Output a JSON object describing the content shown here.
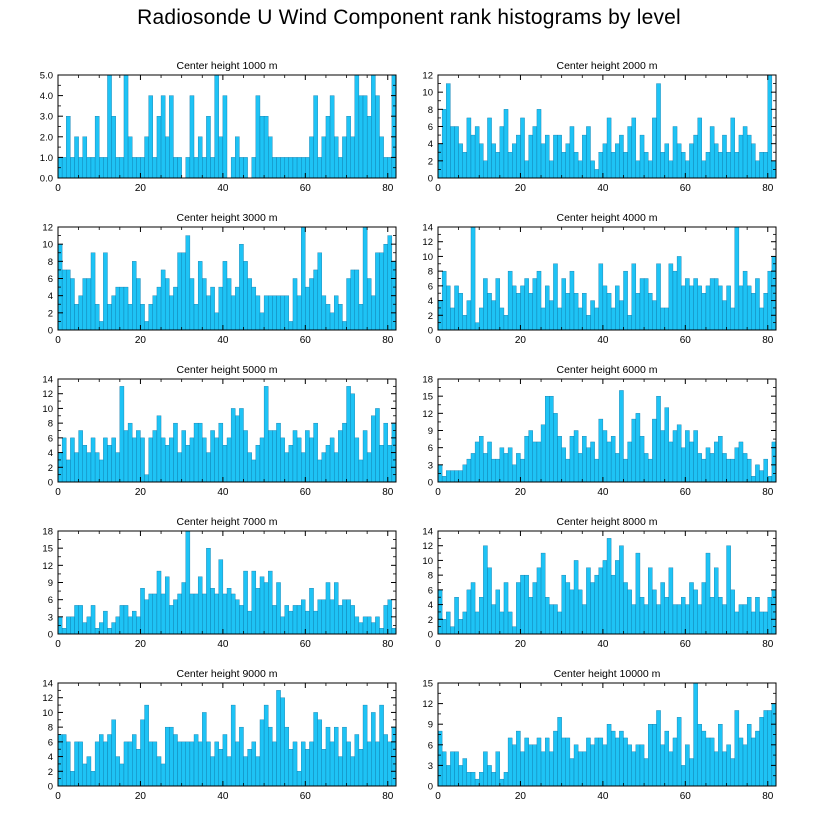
{
  "title": "Radiosonde U Wind Component rank histograms by level",
  "colors": {
    "bar_fill": "#1ec3f5",
    "bar_edge": "#0a6fa0",
    "axis": "#000000"
  },
  "chart_data": [
    {
      "type": "bar",
      "title": "Center height 1000 m",
      "xlim": [
        0,
        82
      ],
      "ylim": [
        0,
        5
      ],
      "xticks": [
        0,
        20,
        40,
        60,
        80
      ],
      "xtick_labels": [
        "0",
        "20",
        "40",
        "60",
        "80"
      ],
      "yticks": [
        0,
        1,
        2,
        3,
        4,
        5
      ],
      "ytick_labels": [
        "0.0",
        "1.0",
        "2.0",
        "3.0",
        "4.0",
        "5.0"
      ],
      "values": [
        1,
        1,
        3,
        1,
        2,
        1,
        2,
        1,
        1,
        3,
        1,
        1,
        5,
        3,
        1,
        1,
        5,
        2,
        1,
        1,
        1,
        2,
        4,
        1,
        3,
        4,
        2,
        4,
        1,
        1,
        0,
        1,
        4,
        1,
        2,
        1,
        3,
        1,
        5,
        2,
        4,
        0,
        1,
        2,
        1,
        1,
        0,
        1,
        4,
        3,
        3,
        2,
        1,
        1,
        1,
        1,
        1,
        1,
        1,
        1,
        1,
        2,
        4,
        1,
        2,
        3,
        4,
        2,
        1,
        2,
        3,
        2,
        5,
        4,
        4,
        3,
        5,
        4,
        2,
        1,
        1,
        5
      ]
    },
    {
      "type": "bar",
      "title": "Center height 2000 m",
      "xlim": [
        0,
        82
      ],
      "ylim": [
        0,
        12
      ],
      "xticks": [
        0,
        20,
        40,
        60,
        80
      ],
      "xtick_labels": [
        "0",
        "20",
        "40",
        "60",
        "80"
      ],
      "yticks": [
        0,
        2,
        4,
        6,
        8,
        10,
        12
      ],
      "ytick_labels": [
        "0",
        "2",
        "4",
        "6",
        "8",
        "10",
        "12"
      ],
      "values": [
        4,
        8,
        11,
        6,
        6,
        4,
        3,
        7,
        5,
        6,
        4,
        2,
        7,
        4,
        3,
        6,
        8,
        3,
        4,
        5,
        7,
        2,
        5,
        6,
        8,
        4,
        5,
        2,
        5,
        5,
        3,
        4,
        6,
        3,
        2,
        5,
        6,
        2,
        1,
        3,
        4,
        7,
        3,
        4,
        5,
        3,
        6,
        7,
        2,
        5,
        3,
        2,
        7,
        11,
        3,
        4,
        2,
        6,
        4,
        3,
        2,
        4,
        5,
        7,
        2,
        3,
        6,
        4,
        3,
        5,
        3,
        7,
        3,
        5,
        6,
        5,
        4,
        2,
        3,
        3,
        12,
        2
      ]
    },
    {
      "type": "bar",
      "title": "Center height 3000 m",
      "xlim": [
        0,
        82
      ],
      "ylim": [
        0,
        12
      ],
      "xticks": [
        0,
        20,
        40,
        60,
        80
      ],
      "xtick_labels": [
        "0",
        "20",
        "40",
        "60",
        "80"
      ],
      "yticks": [
        0,
        2,
        4,
        6,
        8,
        10,
        12
      ],
      "ytick_labels": [
        "0",
        "2",
        "4",
        "6",
        "8",
        "10",
        "12"
      ],
      "values": [
        10,
        7,
        7,
        6,
        3,
        4,
        6,
        6,
        9,
        3,
        1,
        9,
        3,
        4,
        5,
        5,
        5,
        3,
        8,
        6,
        3,
        1,
        3,
        4,
        5,
        7,
        6,
        4,
        5,
        9,
        9,
        11,
        6,
        3,
        8,
        6,
        4,
        5,
        2,
        5,
        8,
        6,
        4,
        5,
        10,
        8,
        6,
        5,
        4,
        2,
        4,
        4,
        4,
        4,
        4,
        4,
        1,
        6,
        4,
        12,
        5,
        6,
        7,
        9,
        4,
        3,
        2,
        4,
        3,
        1,
        6,
        7,
        7,
        3,
        12,
        6,
        4,
        9,
        9,
        10,
        11,
        8
      ]
    },
    {
      "type": "bar",
      "title": "Center height 4000 m",
      "xlim": [
        0,
        82
      ],
      "ylim": [
        0,
        14
      ],
      "xticks": [
        0,
        20,
        40,
        60,
        80
      ],
      "xtick_labels": [
        "0",
        "20",
        "40",
        "60",
        "80"
      ],
      "yticks": [
        0,
        2,
        4,
        6,
        8,
        10,
        12,
        14
      ],
      "ytick_labels": [
        "0",
        "2",
        "4",
        "6",
        "8",
        "10",
        "12",
        "14"
      ],
      "values": [
        4,
        8,
        6,
        3,
        6,
        5,
        2,
        4,
        14,
        1,
        3,
        7,
        5,
        4,
        7,
        3,
        2,
        8,
        6,
        5,
        6,
        7,
        5,
        7,
        8,
        3,
        6,
        4,
        9,
        3,
        7,
        5,
        8,
        5,
        3,
        5,
        2,
        4,
        3,
        9,
        6,
        5,
        3,
        6,
        4,
        8,
        2,
        9,
        5,
        7,
        7,
        5,
        4,
        9,
        3,
        3,
        9,
        8,
        10,
        6,
        7,
        6,
        7,
        6,
        5,
        6,
        7,
        7,
        6,
        4,
        6,
        3,
        14,
        6,
        8,
        6,
        5,
        7,
        3,
        5,
        8,
        10
      ]
    },
    {
      "type": "bar",
      "title": "Center height 5000 m",
      "xlim": [
        0,
        82
      ],
      "ylim": [
        0,
        14
      ],
      "xticks": [
        0,
        20,
        40,
        60,
        80
      ],
      "xtick_labels": [
        "0",
        "20",
        "40",
        "60",
        "80"
      ],
      "yticks": [
        0,
        2,
        4,
        6,
        8,
        10,
        12,
        14
      ],
      "ytick_labels": [
        "0",
        "2",
        "4",
        "6",
        "8",
        "10",
        "12",
        "14"
      ],
      "values": [
        4,
        6,
        3,
        6,
        4,
        7,
        5,
        4,
        6,
        4,
        3,
        6,
        5,
        6,
        4,
        13,
        7,
        8,
        6,
        7,
        6,
        1,
        6,
        7,
        9,
        6,
        5,
        6,
        8,
        4,
        7,
        5,
        6,
        8,
        8,
        6,
        4,
        7,
        6,
        8,
        5,
        6,
        10,
        9,
        10,
        7,
        4,
        3,
        5,
        6,
        13,
        7,
        7,
        8,
        6,
        4,
        5,
        7,
        6,
        4,
        7,
        6,
        8,
        3,
        4,
        5,
        6,
        4,
        7,
        8,
        13,
        12,
        6,
        3,
        7,
        4,
        9,
        10,
        5,
        8,
        5,
        8
      ]
    },
    {
      "type": "bar",
      "title": "Center height 6000 m",
      "xlim": [
        0,
        82
      ],
      "ylim": [
        0,
        18
      ],
      "xticks": [
        0,
        20,
        40,
        60,
        80
      ],
      "xtick_labels": [
        "0",
        "20",
        "40",
        "60",
        "80"
      ],
      "yticks": [
        0,
        3,
        6,
        9,
        12,
        15,
        18
      ],
      "ytick_labels": [
        "0",
        "3",
        "6",
        "9",
        "12",
        "15",
        "18"
      ],
      "values": [
        3,
        1,
        2,
        2,
        2,
        2,
        3,
        4,
        5,
        7,
        8,
        5,
        7,
        4,
        4,
        6,
        5,
        6,
        3,
        5,
        4,
        8,
        9,
        7,
        7,
        10,
        15,
        15,
        12,
        8,
        6,
        4,
        8,
        9,
        5,
        8,
        6,
        7,
        4,
        11,
        9,
        7,
        8,
        5,
        16,
        4,
        7,
        11,
        12,
        8,
        5,
        4,
        11,
        15,
        9,
        13,
        7,
        9,
        10,
        6,
        9,
        7,
        9,
        5,
        4,
        6,
        5,
        7,
        8,
        5,
        4,
        4,
        6,
        7,
        5,
        4,
        1,
        3,
        2,
        4,
        1,
        7
      ]
    },
    {
      "type": "bar",
      "title": "Center height 7000 m",
      "xlim": [
        0,
        82
      ],
      "ylim": [
        0,
        18
      ],
      "xticks": [
        0,
        20,
        40,
        60,
        80
      ],
      "xtick_labels": [
        "0",
        "20",
        "40",
        "60",
        "80"
      ],
      "yticks": [
        0,
        3,
        6,
        9,
        12,
        15,
        18
      ],
      "ytick_labels": [
        "0",
        "3",
        "6",
        "9",
        "12",
        "15",
        "18"
      ],
      "values": [
        3,
        1,
        3,
        3,
        5,
        5,
        2,
        3,
        5,
        1,
        2,
        4,
        1,
        2,
        3,
        5,
        5,
        3,
        4,
        3,
        8,
        6,
        7,
        7,
        11,
        7,
        10,
        5,
        6,
        7,
        9,
        18,
        7,
        7,
        10,
        7,
        15,
        8,
        7,
        13,
        7,
        8,
        7,
        6,
        5,
        11,
        4,
        11,
        8,
        10,
        9,
        11,
        5,
        9,
        3,
        5,
        4,
        5,
        5,
        6,
        4,
        8,
        4,
        6,
        6,
        9,
        6,
        9,
        5,
        6,
        6,
        5,
        3,
        2,
        3,
        3,
        2,
        3,
        1,
        5,
        6,
        1
      ]
    },
    {
      "type": "bar",
      "title": "Center height 8000 m",
      "xlim": [
        0,
        82
      ],
      "ylim": [
        0,
        14
      ],
      "xticks": [
        0,
        20,
        40,
        60,
        80
      ],
      "xtick_labels": [
        "0",
        "20",
        "40",
        "60",
        "80"
      ],
      "yticks": [
        0,
        2,
        4,
        6,
        8,
        10,
        12,
        14
      ],
      "ytick_labels": [
        "0",
        "2",
        "4",
        "6",
        "8",
        "10",
        "12",
        "14"
      ],
      "values": [
        6,
        2,
        3,
        1,
        5,
        2,
        3,
        6,
        7,
        3,
        5,
        12,
        9,
        4,
        6,
        3,
        7,
        3,
        1,
        7,
        8,
        8,
        5,
        7,
        9,
        11,
        5,
        4,
        4,
        3,
        8,
        7,
        6,
        10,
        6,
        4,
        9,
        7,
        8,
        9,
        10,
        13,
        8,
        10,
        12,
        7,
        6,
        4,
        11,
        5,
        4,
        9,
        6,
        4,
        7,
        5,
        9,
        4,
        4,
        5,
        4,
        7,
        6,
        4,
        7,
        11,
        5,
        9,
        5,
        4,
        12,
        6,
        3,
        4,
        4,
        5,
        3,
        5,
        3,
        3,
        5,
        6
      ]
    },
    {
      "type": "bar",
      "title": "Center height 9000 m",
      "xlim": [
        0,
        82
      ],
      "ylim": [
        0,
        14
      ],
      "xticks": [
        0,
        20,
        40,
        60,
        80
      ],
      "xtick_labels": [
        "0",
        "20",
        "40",
        "60",
        "80"
      ],
      "yticks": [
        0,
        2,
        4,
        6,
        8,
        10,
        12,
        14
      ],
      "ytick_labels": [
        "0",
        "2",
        "4",
        "6",
        "8",
        "10",
        "12",
        "14"
      ],
      "values": [
        7,
        7,
        6,
        2,
        6,
        6,
        3,
        4,
        2,
        6,
        7,
        6,
        7,
        9,
        4,
        3,
        6,
        6,
        7,
        5,
        9,
        11,
        6,
        6,
        4,
        3,
        8,
        8,
        7,
        6,
        6,
        6,
        6,
        7,
        6,
        10,
        6,
        4,
        6,
        5,
        7,
        4,
        11,
        6,
        8,
        4,
        5,
        6,
        4,
        9,
        11,
        8,
        6,
        13,
        12,
        8,
        5,
        6,
        2,
        6,
        5,
        6,
        10,
        9,
        5,
        8,
        6,
        8,
        4,
        8,
        6,
        4,
        7,
        5,
        11,
        6,
        10,
        6,
        11,
        7,
        6,
        8
      ]
    },
    {
      "type": "bar",
      "title": "Center height 10000 m",
      "xlim": [
        0,
        82
      ],
      "ylim": [
        0,
        15
      ],
      "xticks": [
        0,
        20,
        40,
        60,
        80
      ],
      "xtick_labels": [
        "0",
        "20",
        "40",
        "60",
        "80"
      ],
      "yticks": [
        0,
        3,
        6,
        9,
        12,
        15
      ],
      "ytick_labels": [
        "0",
        "3",
        "6",
        "9",
        "12",
        "15"
      ],
      "values": [
        8,
        5,
        3,
        5,
        5,
        3,
        4,
        2,
        2,
        1,
        2,
        5,
        3,
        2,
        5,
        1,
        2,
        7,
        6,
        8,
        5,
        7,
        6,
        6,
        7,
        5,
        7,
        5,
        8,
        10,
        7,
        7,
        4,
        6,
        5,
        5,
        7,
        6,
        7,
        7,
        6,
        9,
        8,
        7,
        8,
        7,
        6,
        5,
        6,
        6,
        4,
        9,
        9,
        11,
        6,
        8,
        5,
        7,
        10,
        3,
        6,
        4,
        15,
        9,
        8,
        7,
        7,
        5,
        9,
        5,
        6,
        4,
        11,
        7,
        6,
        9,
        7,
        8,
        10,
        11,
        11,
        12
      ]
    }
  ]
}
